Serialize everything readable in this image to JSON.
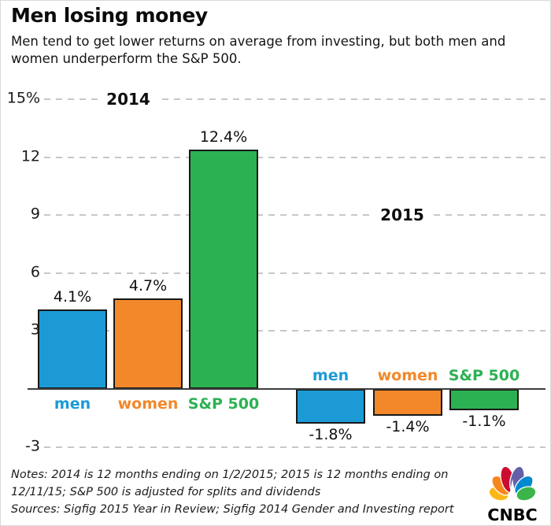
{
  "header": {
    "title": "Men losing money",
    "subtitle": "Men tend to get lower returns on average from investing, but both men and women underperform the S&P 500."
  },
  "chart_data": {
    "type": "bar",
    "title": "Men losing money",
    "subtitle": "Men tend to get lower returns on average from investing, but both men and women underperform the S&P 500.",
    "unit": "%",
    "categories": [
      "men",
      "women",
      "S&P 500"
    ],
    "series": [
      {
        "name": "2014",
        "values": [
          4.1,
          4.7,
          12.4
        ],
        "value_labels": [
          "4.1%",
          "4.7%",
          "12.4%"
        ]
      },
      {
        "name": "2015",
        "values": [
          -1.8,
          -1.4,
          -1.1
        ],
        "value_labels": [
          "-1.8%",
          "-1.4%",
          "-1.1%"
        ]
      }
    ],
    "category_colors": [
      "#1b9ad6",
      "#f2882a",
      "#2cb152"
    ],
    "yticks": [
      {
        "value": 15,
        "label": "15%"
      },
      {
        "value": 12,
        "label": "12"
      },
      {
        "value": 9,
        "label": "9"
      },
      {
        "value": 6,
        "label": "6"
      },
      {
        "value": 3,
        "label": "3"
      },
      {
        "value": -3,
        "label": "-3"
      }
    ],
    "ylim": [
      -3.6,
      15.8
    ],
    "baseline": 0,
    "grid": "horizontal dashed",
    "legend_position": "none",
    "xlabel": "",
    "ylabel": ""
  },
  "footer": {
    "notes": "Notes: 2014 is 12 months ending on 1/2/2015; 2015 is 12 months ending on 12/11/15; S&P 500 is adjusted for splits and dividends",
    "sources": "Sources: Sigfig 2015 Year in Review; Sigfig 2014 Gender and Investing report",
    "logo_text": "CNBC"
  },
  "colors": {
    "men": "#1b9ad6",
    "women": "#f2882a",
    "sp500": "#2cb152",
    "gridline": "#c7c7c7",
    "axis_line": "#3c3c3c",
    "text": "#111111",
    "background": "#ffffff",
    "logo_yellow": "#fab817",
    "logo_orange": "#f6861f",
    "logo_red": "#cc0c2f",
    "logo_purple": "#645fa9",
    "logo_blue": "#0089d0",
    "logo_green": "#3bb54a"
  }
}
